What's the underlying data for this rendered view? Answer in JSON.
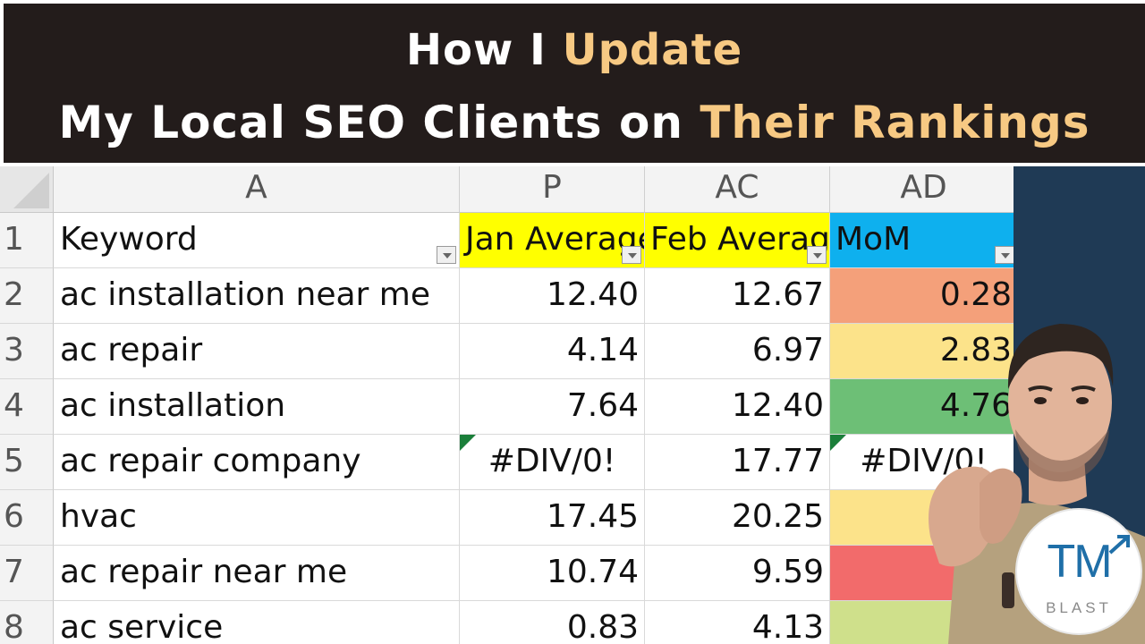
{
  "banner": {
    "line1_prefix": "How I ",
    "line1_highlight": "Update",
    "line2_prefix": "My Local SEO Clients on ",
    "line2_highlight": "Their Rankings",
    "highlight_color": "#f7c983",
    "background": "#231c1b"
  },
  "sheet": {
    "column_letters": [
      "A",
      "P",
      "AC",
      "AD"
    ],
    "row_numbers": [
      "1",
      "2",
      "3",
      "4",
      "5",
      "6",
      "7",
      "8"
    ],
    "headers": [
      {
        "text": "Keyword",
        "color": "#ffffff"
      },
      {
        "text": "Jan Average",
        "color": "#ffff00"
      },
      {
        "text": "Feb Average",
        "color": "#ffff00"
      },
      {
        "text": "MoM",
        "color": "#0eb0ee"
      }
    ],
    "rows": [
      {
        "keyword": "ac installation near me",
        "jan": "12.40",
        "feb": "12.67",
        "mom": "0.28",
        "mom_color": "#f4a07a"
      },
      {
        "keyword": "ac repair",
        "jan": "4.14",
        "feb": "6.97",
        "mom": "2.83",
        "mom_color": "#fce38a"
      },
      {
        "keyword": "ac installation",
        "jan": "7.64",
        "feb": "12.40",
        "mom": "4.76",
        "mom_color": "#6dbf76"
      },
      {
        "keyword": "ac repair company",
        "jan": "#DIV/0!",
        "feb": "17.77",
        "mom": "#DIV/0!",
        "mom_color": "#ffffff"
      },
      {
        "keyword": "hvac",
        "jan": "17.45",
        "feb": "20.25",
        "mom": "",
        "mom_color": "#fce38a"
      },
      {
        "keyword": "ac repair near me",
        "jan": "10.74",
        "feb": "9.59",
        "mom": "",
        "mom_color": "#f26b6b"
      },
      {
        "keyword": "ac service",
        "jan": "0.83",
        "feb": "4.13",
        "mom": "",
        "mom_color": "#cfe08b"
      }
    ]
  },
  "logo": {
    "mark": "TM",
    "word": "BLAST",
    "color": "#1f6fa8"
  },
  "icons": {
    "filter": "filter-dropdown-icon",
    "error_indicator": "error-indicator-icon",
    "logo_arrow": "trend-arrow-icon"
  }
}
